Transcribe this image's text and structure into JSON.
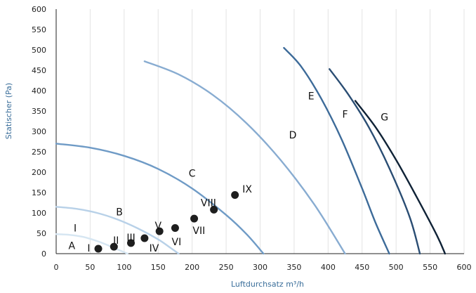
{
  "chart_data": {
    "type": "line",
    "xlabel": "Luftdurchsatz  m³/h",
    "ylabel": "Statischer (Pa)",
    "xlim": [
      0,
      600
    ],
    "ylim": [
      0,
      600
    ],
    "xticks": [
      0,
      50,
      100,
      150,
      200,
      250,
      300,
      350,
      400,
      450,
      500,
      550,
      600
    ],
    "yticks": [
      0,
      50,
      100,
      150,
      200,
      250,
      300,
      350,
      400,
      450,
      500,
      550,
      600
    ],
    "grid": "vertical",
    "series": [
      {
        "name": "A",
        "color": "#d6e6f2",
        "x": [
          0,
          20,
          40,
          60,
          80,
          95,
          105
        ],
        "y": [
          48,
          46,
          41,
          31,
          18,
          7,
          0
        ]
      },
      {
        "name": "B",
        "color": "#b8d1e8",
        "x": [
          0,
          30,
          60,
          90,
          120,
          150,
          170,
          180
        ],
        "y": [
          115,
          110,
          100,
          84,
          62,
          35,
          12,
          0
        ]
      },
      {
        "name": "C",
        "color": "#6f9bc6",
        "x": [
          0,
          50,
          100,
          150,
          200,
          250,
          280,
          305
        ],
        "y": [
          270,
          260,
          240,
          208,
          160,
          95,
          48,
          0
        ]
      },
      {
        "name": "D",
        "color": "#88acd1",
        "x": [
          130,
          180,
          230,
          280,
          330,
          380,
          425
        ],
        "y": [
          472,
          440,
          390,
          320,
          230,
          120,
          0
        ]
      },
      {
        "name": "E",
        "color": "#3d6b99",
        "x": [
          335,
          360,
          390,
          420,
          450,
          470,
          490
        ],
        "y": [
          505,
          460,
          380,
          280,
          160,
          75,
          0
        ]
      },
      {
        "name": "F",
        "color": "#2a4d73",
        "x": [
          402,
          430,
          460,
          490,
          520,
          535
        ],
        "y": [
          453,
          390,
          310,
          210,
          90,
          0
        ]
      },
      {
        "name": "G",
        "color": "#0f2236",
        "x": [
          440,
          470,
          500,
          530,
          560,
          572
        ],
        "y": [
          375,
          310,
          230,
          140,
          45,
          0
        ]
      }
    ],
    "curve_labels": [
      {
        "text": "A",
        "x": 23,
        "y": 20
      },
      {
        "text": "B",
        "x": 93,
        "y": 103
      },
      {
        "text": "C",
        "x": 200,
        "y": 197
      },
      {
        "text": "D",
        "x": 348,
        "y": 291
      },
      {
        "text": "E",
        "x": 375,
        "y": 387
      },
      {
        "text": "F",
        "x": 425,
        "y": 342
      },
      {
        "text": "G",
        "x": 483,
        "y": 335
      },
      {
        "text": "I",
        "x": 28,
        "y": 63
      }
    ],
    "points": [
      {
        "label": "I",
        "x": 62,
        "y": 12,
        "lx": 48,
        "ly": 14
      },
      {
        "label": "II",
        "x": 85,
        "y": 17,
        "lx": 88,
        "ly": 33
      },
      {
        "label": "III",
        "x": 110,
        "y": 26,
        "lx": 110,
        "ly": 40
      },
      {
        "label": "IV",
        "x": 130,
        "y": 38,
        "lx": 144,
        "ly": 14
      },
      {
        "label": "V",
        "x": 152,
        "y": 55,
        "lx": 150,
        "ly": 69
      },
      {
        "label": "VI",
        "x": 175,
        "y": 63,
        "lx": 177,
        "ly": 29
      },
      {
        "label": "VII",
        "x": 203,
        "y": 86,
        "lx": 210,
        "ly": 57
      },
      {
        "label": "VIII",
        "x": 232,
        "y": 108,
        "lx": 224,
        "ly": 125
      },
      {
        "label": "IX",
        "x": 263,
        "y": 144,
        "lx": 281,
        "ly": 159
      }
    ]
  }
}
